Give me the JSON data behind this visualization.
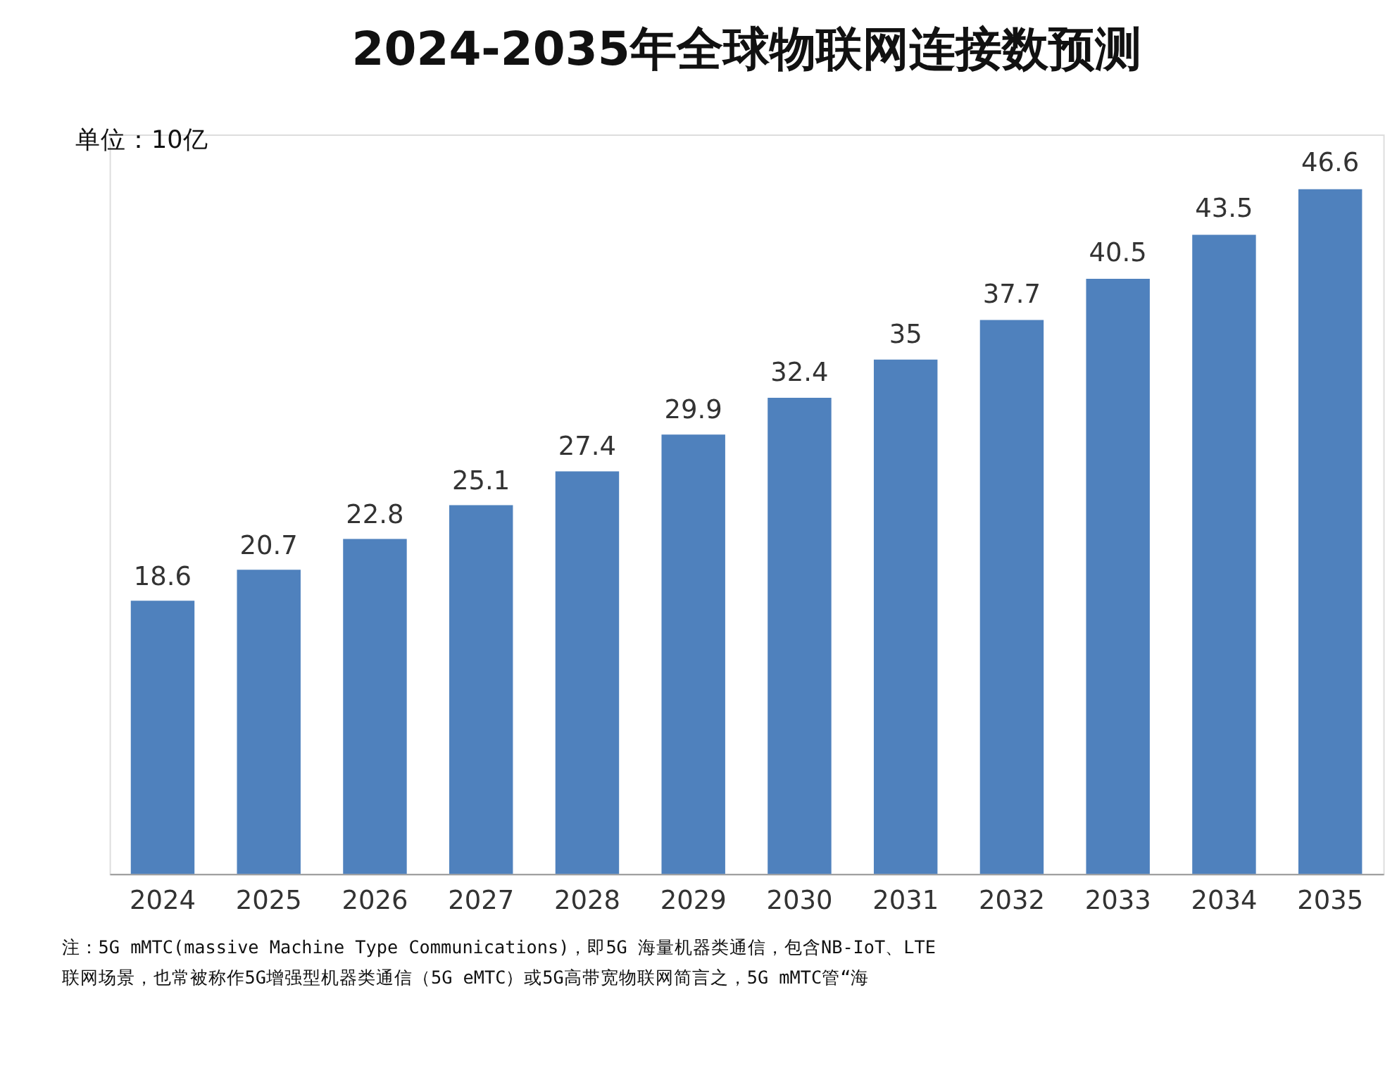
{
  "chart_data": {
    "type": "bar",
    "title": "2024-2035年全球物联网连接数预测",
    "ylabel": "单位：10亿",
    "categories": [
      "2024",
      "2025",
      "2026",
      "2027",
      "2028",
      "2029",
      "2030",
      "2031",
      "2032",
      "2033",
      "2034",
      "2035"
    ],
    "values": [
      18.6,
      20.7,
      22.8,
      25.1,
      27.4,
      29.9,
      32.4,
      35,
      37.7,
      40.5,
      43.5,
      46.6
    ],
    "color": "#4f81bd",
    "data_labels": true,
    "annotations": [
      "注：5G mMTC(massive Machine Type Communications)，即5G 海量机器类通信，包含NB-IoT、LTE",
      "联网场景，也常被称作5G增强型机器类通信（5G eMTC）或5G高带宽物联网简言之，5G mMTC管“海"
    ]
  }
}
